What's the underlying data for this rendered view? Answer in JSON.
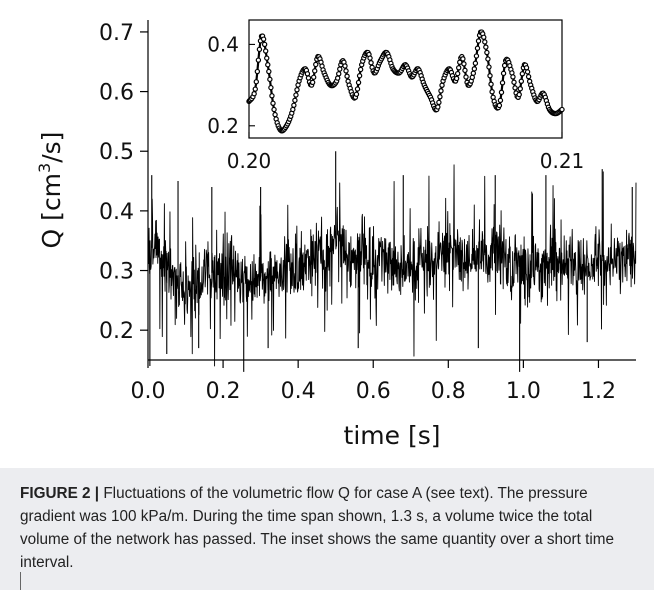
{
  "chart_data": [
    {
      "type": "line",
      "name_role": "main",
      "xlabel": "time [s]",
      "ylabel": "Q [cm³/s]",
      "ylabel_base": "Q [cm",
      "ylabel_sup": "3",
      "ylabel_tail": "/s]",
      "xlim": [
        0.0,
        1.3
      ],
      "ylim": [
        0.15,
        0.72
      ],
      "xticks": [
        0.0,
        0.2,
        0.4,
        0.6,
        0.8,
        1.0,
        1.2
      ],
      "xtick_labels": [
        "0.0",
        "0.2",
        "0.4",
        "0.6",
        "0.8",
        "1.0",
        "1.2"
      ],
      "yticks": [
        0.2,
        0.3,
        0.4,
        0.5,
        0.6,
        0.7
      ],
      "ytick_labels": [
        "0.2",
        "0.3",
        "0.4",
        "0.5",
        "0.6",
        "0.7"
      ],
      "grid": false,
      "series": [
        {
          "color": "#000000",
          "x": [
            0.0,
            0.025,
            0.05,
            0.075,
            0.1,
            0.125,
            0.15,
            0.175,
            0.2,
            0.225,
            0.25,
            0.275,
            0.3,
            0.325,
            0.35,
            0.375,
            0.4,
            0.425,
            0.45,
            0.475,
            0.5,
            0.525,
            0.55,
            0.575,
            0.6,
            0.625,
            0.65,
            0.675,
            0.7,
            0.725,
            0.75,
            0.775,
            0.8,
            0.825,
            0.85,
            0.875,
            0.9,
            0.925,
            0.95,
            0.975,
            1.0,
            1.025,
            1.05,
            1.075,
            1.1,
            1.125,
            1.15,
            1.175,
            1.2,
            1.225,
            1.25,
            1.275,
            1.3
          ],
          "y": [
            0.33,
            0.35,
            0.3,
            0.28,
            0.27,
            0.29,
            0.28,
            0.3,
            0.29,
            0.3,
            0.28,
            0.28,
            0.29,
            0.29,
            0.3,
            0.31,
            0.3,
            0.32,
            0.33,
            0.34,
            0.36,
            0.34,
            0.32,
            0.33,
            0.31,
            0.32,
            0.31,
            0.3,
            0.31,
            0.32,
            0.31,
            0.32,
            0.33,
            0.33,
            0.32,
            0.32,
            0.33,
            0.34,
            0.32,
            0.31,
            0.31,
            0.3,
            0.3,
            0.31,
            0.31,
            0.32,
            0.3,
            0.31,
            0.32,
            0.31,
            0.32,
            0.32,
            0.33
          ],
          "extremes": [
            {
              "x": 0.005,
              "y": 0.14
            },
            {
              "x": 0.01,
              "y": 0.46
            },
            {
              "x": 0.05,
              "y": 0.16
            },
            {
              "x": 0.08,
              "y": 0.45
            },
            {
              "x": 0.135,
              "y": 0.17
            },
            {
              "x": 0.17,
              "y": 0.44
            },
            {
              "x": 0.255,
              "y": 0.13
            },
            {
              "x": 0.3,
              "y": 0.44
            },
            {
              "x": 0.32,
              "y": 0.17
            },
            {
              "x": 0.5,
              "y": 0.5
            },
            {
              "x": 0.56,
              "y": 0.17
            },
            {
              "x": 0.68,
              "y": 0.46
            },
            {
              "x": 0.88,
              "y": 0.17
            },
            {
              "x": 0.925,
              "y": 0.46
            },
            {
              "x": 0.99,
              "y": 0.13
            },
            {
              "x": 1.06,
              "y": 0.46
            },
            {
              "x": 1.17,
              "y": 0.18
            },
            {
              "x": 1.21,
              "y": 0.47
            },
            {
              "x": 1.29,
              "y": 0.44
            }
          ]
        }
      ]
    },
    {
      "type": "line",
      "name_role": "inset",
      "xlim": [
        0.2,
        0.21
      ],
      "ylim": [
        0.17,
        0.46
      ],
      "xticks": [
        0.2,
        0.21
      ],
      "xtick_labels": [
        "0.20",
        "0.21"
      ],
      "yticks": [
        0.2,
        0.4
      ],
      "ytick_labels": [
        "0.2",
        "0.4"
      ],
      "grid": false,
      "series": [
        {
          "color": "#000000",
          "marker": "dot",
          "x": [
            0.2,
            0.2002,
            0.2004,
            0.2006,
            0.2008,
            0.201,
            0.2012,
            0.2014,
            0.2016,
            0.2018,
            0.202,
            0.2022,
            0.2024,
            0.2026,
            0.2028,
            0.203,
            0.2032,
            0.2034,
            0.2036,
            0.2038,
            0.204,
            0.2042,
            0.2044,
            0.2046,
            0.2048,
            0.205,
            0.2052,
            0.2054,
            0.2056,
            0.2058,
            0.206,
            0.2062,
            0.2064,
            0.2066,
            0.2068,
            0.207,
            0.2072,
            0.2074,
            0.2076,
            0.2078,
            0.208,
            0.2082,
            0.2084,
            0.2086,
            0.2088,
            0.209,
            0.2092,
            0.2094,
            0.2096,
            0.2098,
            0.21
          ],
          "y": [
            0.26,
            0.29,
            0.42,
            0.35,
            0.24,
            0.19,
            0.2,
            0.24,
            0.31,
            0.34,
            0.3,
            0.37,
            0.33,
            0.3,
            0.31,
            0.36,
            0.3,
            0.27,
            0.35,
            0.38,
            0.33,
            0.36,
            0.38,
            0.34,
            0.33,
            0.35,
            0.32,
            0.34,
            0.3,
            0.27,
            0.24,
            0.31,
            0.34,
            0.31,
            0.37,
            0.3,
            0.34,
            0.43,
            0.38,
            0.27,
            0.25,
            0.36,
            0.33,
            0.27,
            0.35,
            0.3,
            0.26,
            0.28,
            0.24,
            0.23,
            0.24
          ]
        }
      ]
    }
  ],
  "caption": {
    "label": "FIGURE 2 |",
    "text": " Fluctuations of the volumetric flow Q for case A (see text). The pressure gradient was 100 kPa/m. During the time span shown, 1.3 s, a volume twice the total volume of the network has passed. The inset shows the same quantity over a short time interval."
  }
}
